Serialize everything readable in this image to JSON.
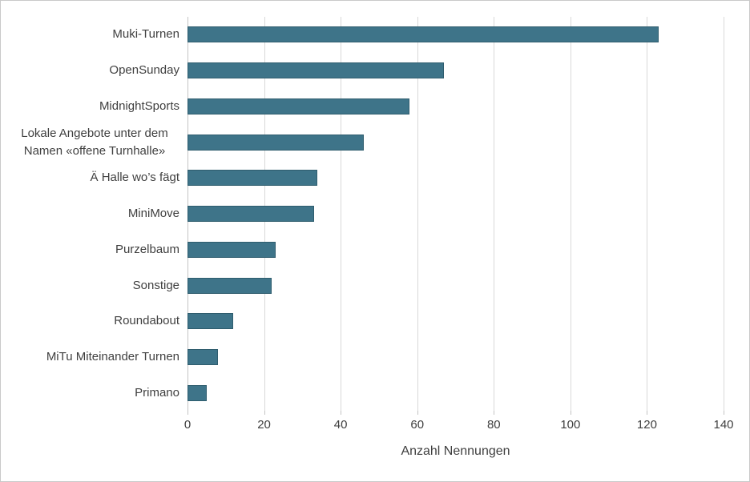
{
  "chart_data": {
    "type": "bar",
    "orientation": "horizontal",
    "categories": [
      "Muki-Turnen",
      "OpenSunday",
      "MidnightSports",
      "Lokale Angebote unter dem Namen «offene Turnhalle»",
      "Ä Halle wo’s fägt",
      "MiniMove",
      "Purzelbaum",
      "Sonstige",
      "Roundabout",
      "MiTu Miteinander Turnen",
      "Primano"
    ],
    "values": [
      123,
      67,
      58,
      46,
      34,
      33,
      23,
      22,
      12,
      8,
      5
    ],
    "title": "",
    "xlabel": "Anzahl Nennungen",
    "ylabel": "",
    "xlim": [
      0,
      140
    ],
    "xticks": [
      0,
      20,
      40,
      60,
      80,
      100,
      120,
      140
    ],
    "grid": "vertical-only",
    "legend": "none",
    "colors": {
      "bar_fill": "#3e7489",
      "bar_border": "#2f5d6e",
      "gridline": "#d9d9d9",
      "axis_line": "#c4c4c4",
      "text": "#3f3f3f",
      "background": "#ffffff"
    }
  }
}
